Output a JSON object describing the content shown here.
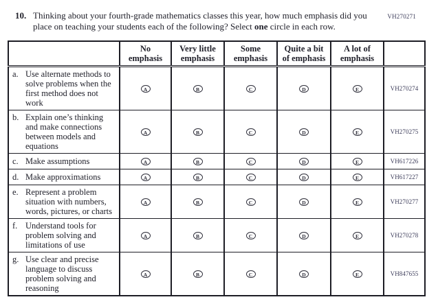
{
  "form_code": "VH270271",
  "question": {
    "number": "10.",
    "text_part1": "Thinking about your fourth-grade mathematics classes this year, how much emphasis did you place on teaching your students each of the following? Select ",
    "bold_word": "one",
    "text_part2": " circle in each row."
  },
  "table": {
    "columns": [
      "No emphasis",
      "Very little emphasis",
      "Some emphasis",
      "Quite a bit of emphasis",
      "A lot of emphasis"
    ],
    "option_letters": [
      "A",
      "B",
      "C",
      "D",
      "E"
    ],
    "rows": [
      {
        "letter": "a.",
        "label": "Use alternate methods to solve problems when the first method does not work",
        "code": "VH270274"
      },
      {
        "letter": "b.",
        "label": "Explain one’s thinking and make connections between models and equations",
        "code": "VH270275"
      },
      {
        "letter": "c.",
        "label": "Make assumptions",
        "code": "VH617226"
      },
      {
        "letter": "d.",
        "label": "Make approximations",
        "code": "VH617227"
      },
      {
        "letter": "e.",
        "label": "Represent a problem situation with numbers, words, pictures, or charts",
        "code": "VH270277"
      },
      {
        "letter": "f.",
        "label": "Understand tools for problem solving and limitations of use",
        "code": "VH270278"
      },
      {
        "letter": "g.",
        "label": "Use clear and precise language to discuss problem solving and reasoning",
        "code": "VH847655"
      }
    ]
  },
  "colors": {
    "ink": "#21212b",
    "border": "#1c1c24",
    "code_ink": "#3c3c5a",
    "background": "#ffffff"
  }
}
